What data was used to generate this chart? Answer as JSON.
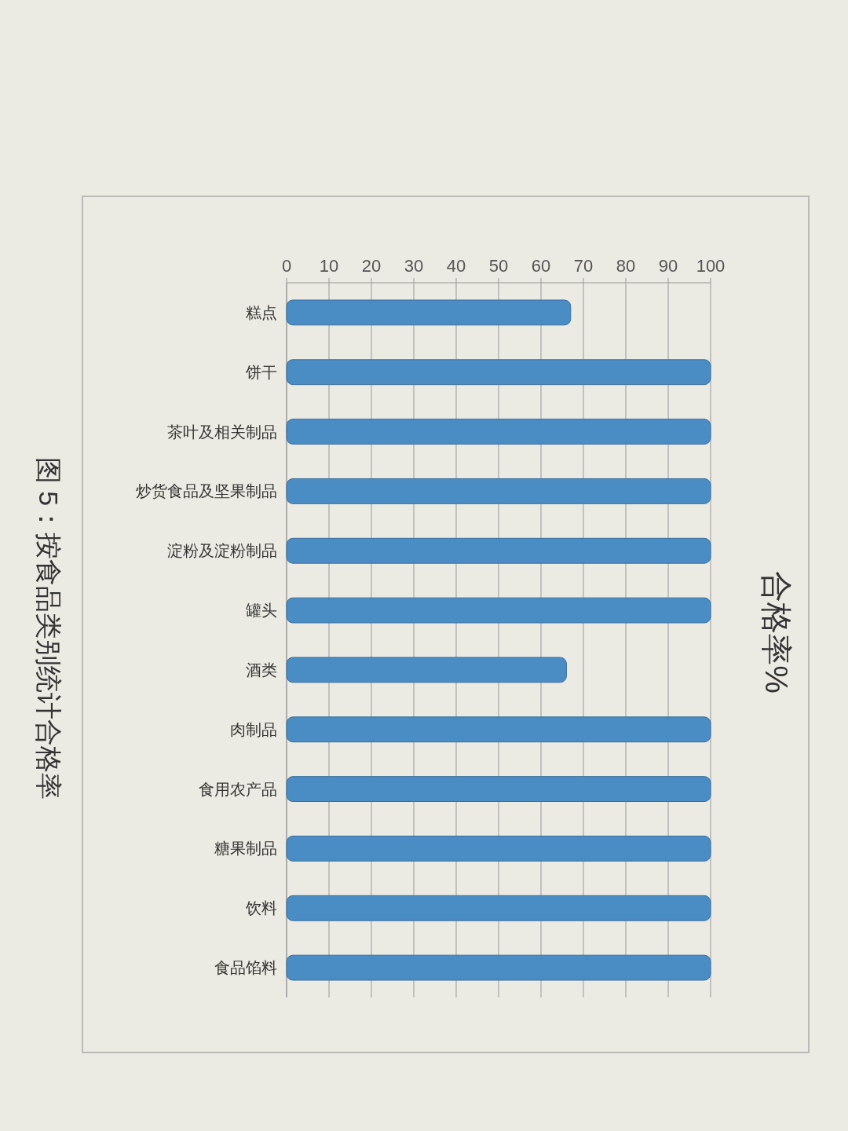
{
  "chart_data": {
    "type": "bar",
    "orientation": "horizontal",
    "title": "合格率%",
    "categories": [
      "糕点",
      "饼干",
      "茶叶及相关制品",
      "炒货食品及坚果制品",
      "淀粉及淀粉制品",
      "罐头",
      "酒类",
      "肉制品",
      "食用农产品",
      "糖果制品",
      "饮料",
      "食品馅料"
    ],
    "values": [
      67,
      100,
      100,
      100,
      100,
      100,
      66,
      100,
      100,
      100,
      100,
      100
    ],
    "color": "#4a8cc4",
    "xlim": [
      0,
      100
    ],
    "xticks": [
      0,
      10,
      20,
      30,
      40,
      50,
      60,
      70,
      80,
      90,
      100
    ],
    "grid": "x",
    "annotations": [
      "图 5：按食品类别统计合格率"
    ]
  }
}
